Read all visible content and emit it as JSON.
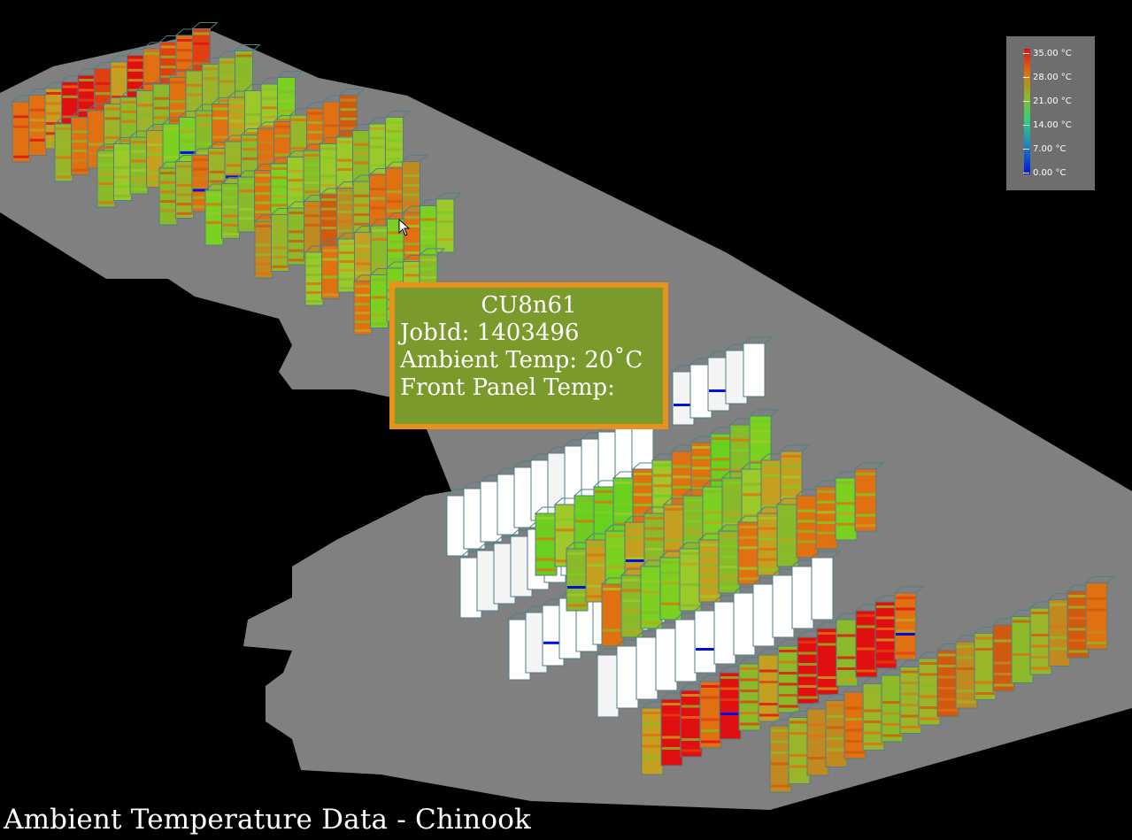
{
  "caption": "Ambient Temperature Data - Chinook",
  "tooltip": {
    "title": "CU8n61",
    "job_id": "JobId: 1403496",
    "ambient_temp": "Ambient Temp: 20˚C",
    "front_panel_temp": "Front Panel Temp:"
  },
  "legend": {
    "ticks": [
      "35.00 °C",
      "28.00 °C",
      "21.00 °C",
      "14.00 °C",
      "7.00 °C",
      "0.00 °C"
    ]
  },
  "colors": {
    "background": "#000000",
    "floor": "#808080",
    "tooltip_fill": "#7a9a2b",
    "tooltip_border": "#e8921e",
    "rack_outline": "#4f7f8a",
    "legend_bg": "#6e6e6e",
    "hot": "#e01010",
    "warm": "#e07010",
    "mild": "#8ab92a",
    "cool": "#2fd07a",
    "cold": "#0010e0",
    "idle": "#ffffff"
  }
}
